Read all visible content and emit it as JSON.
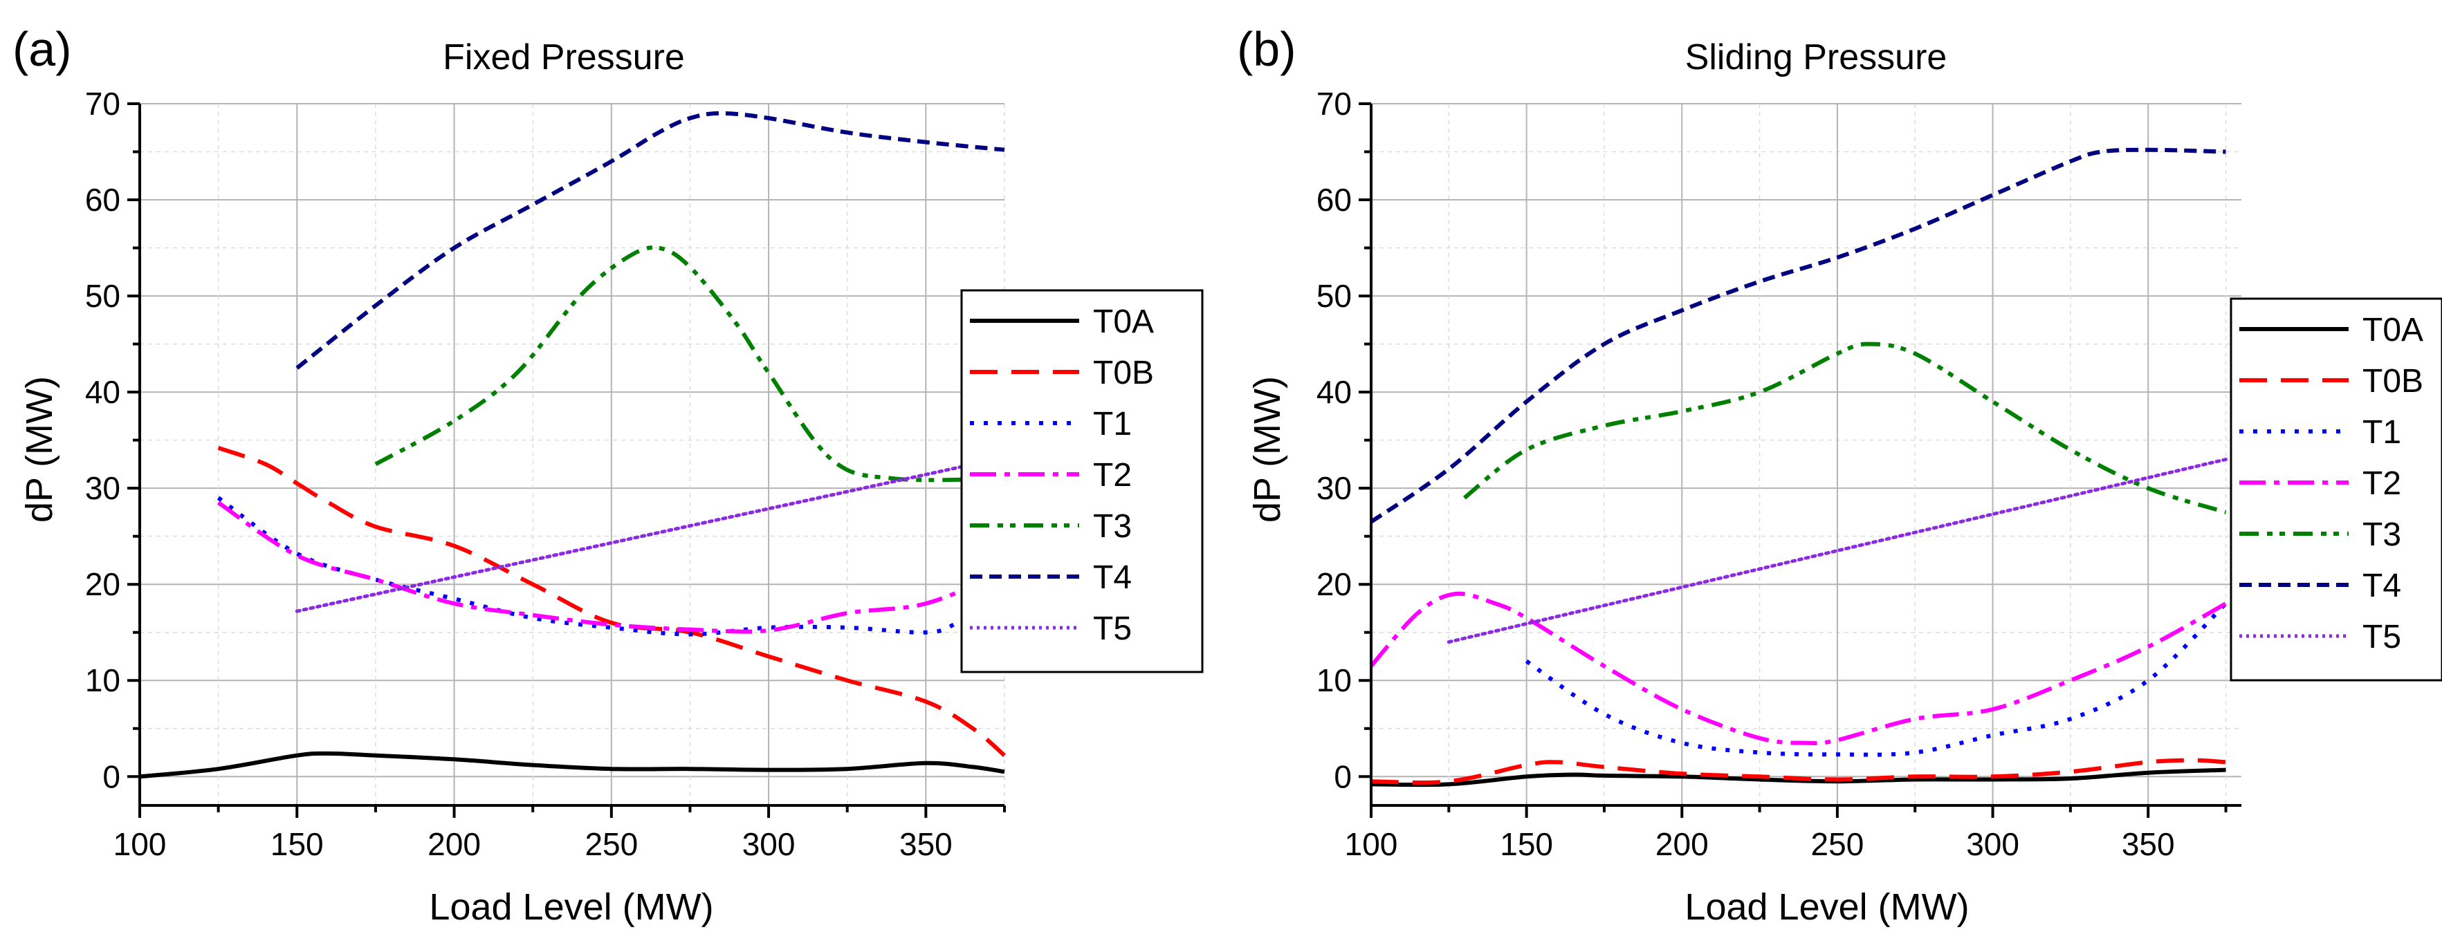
{
  "colors": {
    "T0A": "#000000",
    "T0B": "#ff0000",
    "T1": "#0000ff",
    "T2": "#ff00ff",
    "T3": "#008000",
    "T4": "#000080",
    "T5": "#8a2be2",
    "grid_major": "#b4b4b4",
    "grid_minor": "#dcdcdc"
  },
  "chart_data": [
    {
      "type": "line",
      "panel_label": "(a)",
      "title": "Fixed Pressure",
      "xlabel": "Load Level (MW)",
      "ylabel": "dP (MW)",
      "xlim": [
        100,
        375
      ],
      "ylim": [
        -3,
        70
      ],
      "xticks": [
        "100",
        "150",
        "200",
        "250",
        "300",
        "350"
      ],
      "yticks": [
        "0",
        "10",
        "20",
        "30",
        "40",
        "50",
        "60",
        "70"
      ],
      "grid": true,
      "legend_position": "right",
      "series": [
        {
          "name": "T0A",
          "x": [
            100,
            125,
            150,
            160,
            175,
            200,
            225,
            250,
            275,
            300,
            325,
            350,
            365,
            375
          ],
          "y": [
            0,
            0.8,
            2.2,
            2.4,
            2.2,
            1.8,
            1.2,
            0.8,
            0.8,
            0.7,
            0.8,
            1.4,
            1.0,
            0.5
          ]
        },
        {
          "name": "T0B",
          "x": [
            125,
            140,
            150,
            160,
            175,
            200,
            225,
            250,
            275,
            300,
            325,
            350,
            365,
            375
          ],
          "y": [
            34.2,
            32.5,
            30.5,
            28.5,
            26,
            24,
            20,
            16,
            15,
            12.5,
            10,
            7.8,
            5,
            2.2
          ]
        },
        {
          "name": "T1",
          "x": [
            125,
            150,
            175,
            200,
            225,
            250,
            275,
            300,
            325,
            350,
            360,
            375
          ],
          "y": [
            29,
            23.2,
            20.5,
            18.5,
            16.5,
            15.5,
            14.8,
            15.5,
            15.5,
            15,
            16,
            19
          ]
        },
        {
          "name": "T2",
          "x": [
            125,
            150,
            175,
            200,
            225,
            250,
            275,
            300,
            325,
            350,
            375
          ],
          "y": [
            28.5,
            23,
            20.5,
            18,
            16.8,
            15.8,
            15.3,
            15.2,
            17,
            18,
            21.3
          ]
        },
        {
          "name": "T3",
          "x": [
            175,
            200,
            220,
            240,
            255,
            265,
            275,
            290,
            300,
            320,
            340,
            375
          ],
          "y": [
            32.5,
            37,
            42,
            50,
            54,
            55,
            53,
            47,
            42,
            33,
            31,
            31
          ]
        },
        {
          "name": "T4",
          "x": [
            150,
            175,
            200,
            225,
            250,
            265,
            275,
            285,
            300,
            325,
            350,
            375
          ],
          "y": [
            42.5,
            49,
            55,
            59.5,
            64,
            67,
            68.5,
            69,
            68.5,
            67,
            66,
            65.2
          ]
        },
        {
          "name": "T5",
          "x": [
            150,
            375
          ],
          "y": [
            17.2,
            33.2
          ]
        }
      ]
    },
    {
      "type": "line",
      "panel_label": "(b)",
      "title": "Sliding Pressure",
      "xlabel": "Load Level (MW)",
      "ylabel": "dP (MW)",
      "xlim": [
        100,
        380
      ],
      "ylim": [
        -3,
        70
      ],
      "xticks": [
        "100",
        "150",
        "200",
        "250",
        "300",
        "350"
      ],
      "yticks": [
        "0",
        "10",
        "20",
        "30",
        "40",
        "50",
        "60",
        "70"
      ],
      "grid": true,
      "legend_position": "right",
      "series": [
        {
          "name": "T0A",
          "x": [
            100,
            125,
            150,
            165,
            175,
            200,
            225,
            250,
            275,
            300,
            325,
            350,
            375
          ],
          "y": [
            -0.8,
            -0.8,
            0,
            0.2,
            0.1,
            0,
            -0.3,
            -0.5,
            -0.3,
            -0.3,
            -0.2,
            0.4,
            0.7
          ]
        },
        {
          "name": "T0B",
          "x": [
            100,
            125,
            150,
            160,
            175,
            200,
            225,
            250,
            275,
            300,
            325,
            350,
            365,
            375
          ],
          "y": [
            -0.5,
            -0.5,
            1.2,
            1.5,
            1.0,
            0.3,
            0,
            -0.3,
            0,
            0,
            0.5,
            1.5,
            1.7,
            1.5
          ]
        },
        {
          "name": "T1",
          "x": [
            150,
            175,
            200,
            225,
            250,
            275,
            300,
            325,
            350,
            375
          ],
          "y": [
            12,
            6.5,
            3.5,
            2.5,
            2.3,
            2.5,
            4.3,
            6,
            10,
            18
          ]
        },
        {
          "name": "T2",
          "x": [
            100,
            115,
            127,
            140,
            150,
            175,
            200,
            225,
            240,
            250,
            275,
            300,
            325,
            350,
            375
          ],
          "y": [
            11.5,
            17,
            19,
            18,
            16.5,
            11.5,
            7,
            4,
            3.5,
            3.8,
            6,
            7,
            10,
            13.5,
            18
          ]
        },
        {
          "name": "T3",
          "x": [
            130,
            150,
            175,
            200,
            225,
            250,
            260,
            275,
            300,
            325,
            350,
            375
          ],
          "y": [
            29,
            34,
            36.5,
            38,
            40,
            44,
            45,
            44,
            39,
            34,
            30,
            27.5
          ]
        },
        {
          "name": "T4",
          "x": [
            100,
            125,
            150,
            175,
            200,
            225,
            250,
            275,
            300,
            325,
            335,
            350,
            375
          ],
          "y": [
            26.5,
            32,
            39,
            45,
            48.5,
            51.5,
            54,
            57,
            60.5,
            64,
            65,
            65.2,
            65
          ]
        },
        {
          "name": "T5",
          "x": [
            125,
            375
          ],
          "y": [
            14,
            33
          ]
        }
      ]
    }
  ]
}
